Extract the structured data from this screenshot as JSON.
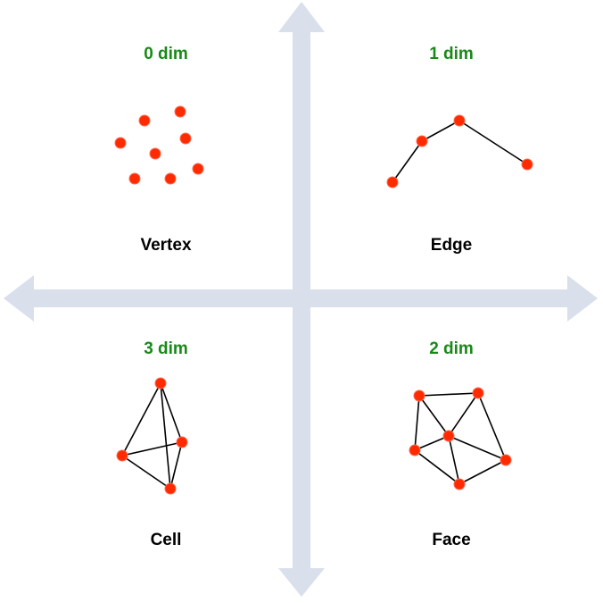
{
  "colors": {
    "axis": "#d9dfeb",
    "dim_label": "#178a17",
    "name_label": "#000000",
    "node": "#ff2a00",
    "edge": "#000000",
    "background": "#ffffff"
  },
  "quadrants": [
    {
      "id": "vertex",
      "dim_label": "0 dim",
      "name": "Vertex",
      "nodes": 8,
      "edges": 0
    },
    {
      "id": "edge",
      "dim_label": "1 dim",
      "name": "Edge",
      "nodes": 4,
      "edges": 3
    },
    {
      "id": "cell",
      "dim_label": "3 dim",
      "name": "Cell",
      "nodes": 4,
      "edges": 6
    },
    {
      "id": "face",
      "dim_label": "2 dim",
      "name": "Face",
      "nodes": 6,
      "edges": 10
    }
  ]
}
